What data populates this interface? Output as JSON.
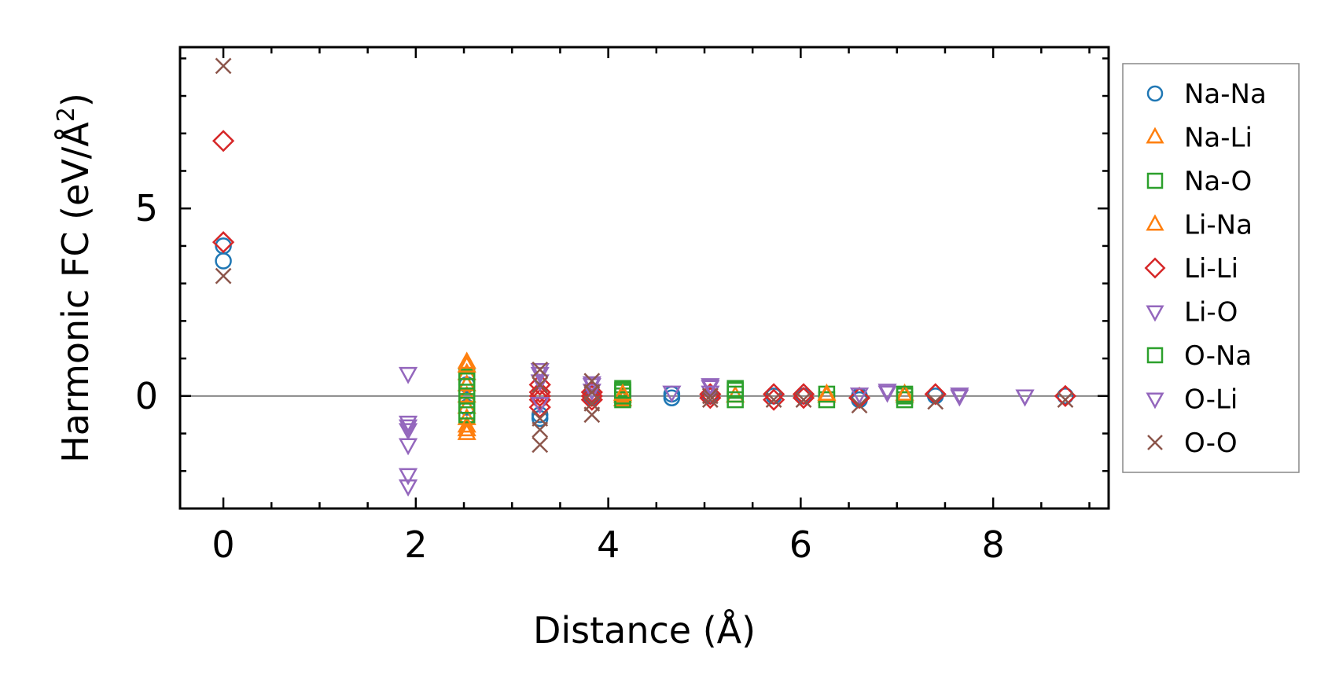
{
  "chart_data": {
    "type": "scatter",
    "xlabel": "Distance (Å)",
    "ylabel_main": "Harmonic FC (eV/Å",
    "ylabel_sup": "2",
    "ylabel_close": ")",
    "xlim": [
      -0.45,
      9.2
    ],
    "ylim": [
      -3.0,
      9.3
    ],
    "xticks": [
      0,
      2,
      4,
      6,
      8
    ],
    "yticks": [
      0,
      5
    ],
    "xticks_labels": [
      "0",
      "2",
      "4",
      "6",
      "8"
    ],
    "yticks_labels": [
      "0",
      "5"
    ],
    "x_minor_step": 0.5,
    "y_minor_step": 1,
    "zero_line": true,
    "grid": false,
    "legend_position": "right",
    "series": [
      {
        "name": "Na-Na",
        "marker": "circle",
        "color": "#1f77b4",
        "points": [
          [
            0,
            4.0
          ],
          [
            0,
            3.6
          ],
          [
            2.53,
            0.3
          ],
          [
            2.53,
            -0.3
          ],
          [
            3.29,
            -0.5
          ],
          [
            3.29,
            -0.6
          ],
          [
            3.83,
            0.05
          ],
          [
            3.83,
            -0.05
          ],
          [
            4.66,
            -0.05
          ],
          [
            4.66,
            0.05
          ],
          [
            5.06,
            0.0
          ],
          [
            5.72,
            0.0
          ],
          [
            6.03,
            0.0
          ],
          [
            6.61,
            0.0
          ],
          [
            6.61,
            -0.1
          ],
          [
            7.4,
            0.0
          ],
          [
            8.75,
            0.0
          ]
        ]
      },
      {
        "name": "Na-Li",
        "marker": "triangle-up",
        "color": "#ff7f0e",
        "points": [
          [
            2.53,
            0.9
          ],
          [
            2.53,
            0.6
          ],
          [
            2.53,
            0.3
          ],
          [
            2.53,
            0.0
          ],
          [
            2.53,
            -0.3
          ],
          [
            2.53,
            -0.6
          ],
          [
            2.53,
            -0.9
          ],
          [
            2.53,
            -1.0
          ],
          [
            4.15,
            0.0
          ],
          [
            4.15,
            -0.1
          ],
          [
            5.32,
            0.0
          ],
          [
            6.27,
            0.0
          ],
          [
            7.08,
            0.0
          ]
        ]
      },
      {
        "name": "Na-O",
        "marker": "square",
        "color": "#2ca02c",
        "points": [
          [
            2.53,
            0.5
          ],
          [
            2.53,
            0.25
          ],
          [
            2.53,
            0.0
          ],
          [
            2.53,
            -0.25
          ],
          [
            2.53,
            -0.5
          ],
          [
            4.15,
            0.2
          ],
          [
            4.15,
            0.1
          ],
          [
            4.15,
            0.0
          ],
          [
            4.15,
            -0.1
          ],
          [
            5.32,
            0.2
          ],
          [
            5.32,
            0.05
          ],
          [
            5.32,
            -0.1
          ],
          [
            6.27,
            0.05
          ],
          [
            6.27,
            -0.1
          ],
          [
            7.08,
            0.0
          ],
          [
            7.08,
            -0.1
          ]
        ]
      },
      {
        "name": "Li-Na",
        "marker": "triangle-up",
        "color": "#ff7f0e",
        "points": [
          [
            2.53,
            0.8
          ],
          [
            2.53,
            -0.8
          ],
          [
            4.15,
            0.05
          ],
          [
            6.27,
            0.05
          ],
          [
            7.08,
            0.05
          ]
        ]
      },
      {
        "name": "Li-Li",
        "marker": "diamond",
        "color": "#d62728",
        "points": [
          [
            0,
            6.8
          ],
          [
            0,
            4.1
          ],
          [
            3.29,
            0.3
          ],
          [
            3.29,
            0.1
          ],
          [
            3.29,
            0.0
          ],
          [
            3.29,
            -0.1
          ],
          [
            3.29,
            -0.3
          ],
          [
            3.83,
            0.1
          ],
          [
            3.83,
            0.0
          ],
          [
            3.83,
            -0.1
          ],
          [
            5.06,
            0.05
          ],
          [
            5.06,
            -0.05
          ],
          [
            5.72,
            0.05
          ],
          [
            5.72,
            -0.1
          ],
          [
            6.03,
            0.05
          ],
          [
            6.03,
            -0.05
          ],
          [
            6.61,
            -0.05
          ],
          [
            7.4,
            0.05
          ],
          [
            8.75,
            0.0
          ]
        ]
      },
      {
        "name": "Li-O",
        "marker": "triangle-down",
        "color": "#9467bd",
        "points": [
          [
            1.92,
            0.6
          ],
          [
            1.92,
            -0.7
          ],
          [
            1.92,
            -0.9
          ],
          [
            1.92,
            -1.3
          ],
          [
            1.92,
            -2.1
          ],
          [
            1.92,
            -2.4
          ],
          [
            3.29,
            0.6
          ],
          [
            3.29,
            0.4
          ],
          [
            3.29,
            -0.2
          ],
          [
            3.83,
            0.3
          ],
          [
            3.83,
            0.15
          ],
          [
            4.66,
            0.1
          ],
          [
            5.06,
            0.25
          ],
          [
            5.06,
            0.1
          ],
          [
            6.61,
            0.05
          ],
          [
            6.9,
            0.1
          ],
          [
            7.65,
            0.0
          ],
          [
            8.33,
            0.0
          ]
        ]
      },
      {
        "name": "O-Na",
        "marker": "square",
        "color": "#2ca02c",
        "points": [
          [
            2.53,
            0.4
          ],
          [
            2.53,
            -0.4
          ],
          [
            4.15,
            0.15
          ],
          [
            5.32,
            0.15
          ],
          [
            7.08,
            0.05
          ]
        ]
      },
      {
        "name": "O-Li",
        "marker": "triangle-down",
        "color": "#9467bd",
        "points": [
          [
            1.92,
            -0.8
          ],
          [
            3.29,
            0.7
          ],
          [
            3.83,
            0.35
          ],
          [
            5.06,
            0.3
          ],
          [
            6.9,
            0.15
          ],
          [
            7.65,
            0.05
          ],
          [
            8.33,
            0.0
          ]
        ]
      },
      {
        "name": "O-O",
        "marker": "x",
        "color": "#8c564b",
        "points": [
          [
            0,
            8.8
          ],
          [
            0,
            3.2
          ],
          [
            3.29,
            0.7
          ],
          [
            3.29,
            0.3
          ],
          [
            3.29,
            -0.6
          ],
          [
            3.29,
            -0.9
          ],
          [
            3.29,
            -1.3
          ],
          [
            3.83,
            0.4
          ],
          [
            3.83,
            0.1
          ],
          [
            3.83,
            -0.2
          ],
          [
            3.83,
            -0.5
          ],
          [
            5.06,
            0.0
          ],
          [
            5.06,
            -0.1
          ],
          [
            5.72,
            -0.1
          ],
          [
            6.03,
            -0.1
          ],
          [
            6.61,
            -0.25
          ],
          [
            7.4,
            -0.15
          ],
          [
            8.75,
            -0.1
          ]
        ]
      }
    ]
  }
}
